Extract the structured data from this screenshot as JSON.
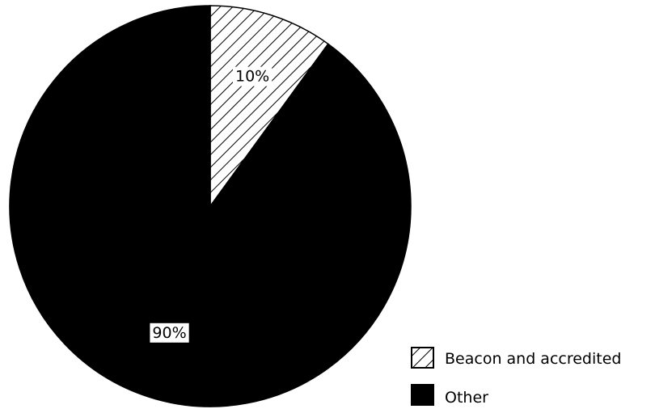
{
  "chart_data": {
    "type": "pie",
    "slices": [
      {
        "name": "Beacon and accredited",
        "value": 10,
        "label": "10%",
        "fill": "hatch"
      },
      {
        "name": "Other",
        "value": 90,
        "label": "90%",
        "fill": "#000000"
      }
    ],
    "start_angle": "12 o'clock",
    "direction": "clockwise",
    "legend": {
      "position": "bottom-right",
      "entries": [
        "Beacon and accredited",
        "Other"
      ]
    },
    "colors": {
      "solid": "#000000",
      "background": "#ffffff"
    }
  }
}
